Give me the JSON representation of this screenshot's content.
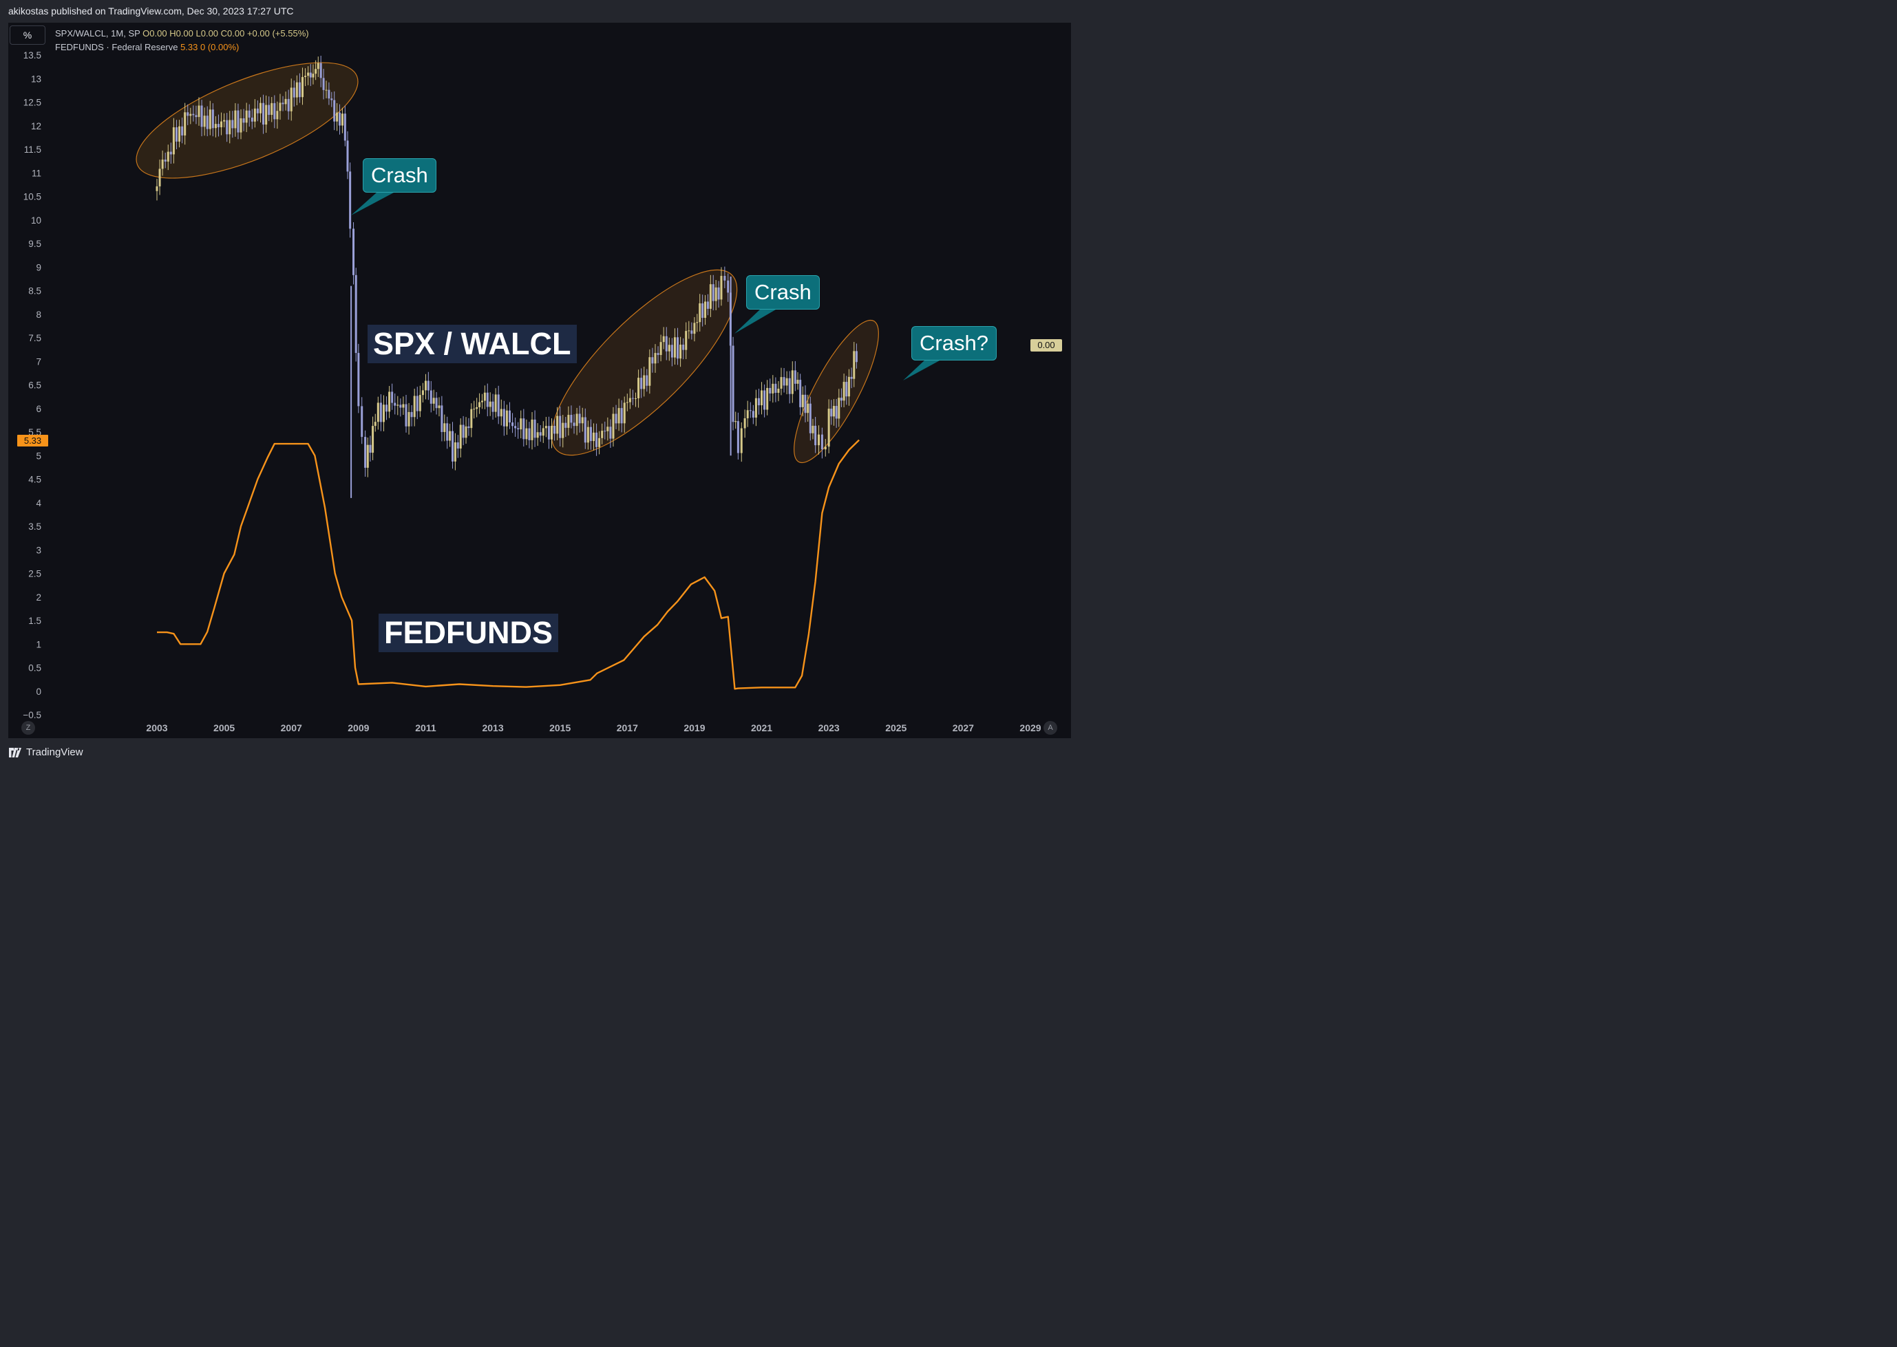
{
  "header": {
    "published": "akikostas published on TradingView.com, Dec 30, 2023 17:27 UTC"
  },
  "toolbar": {
    "scale_button": "%"
  },
  "legend": {
    "symbol": "SPX/WALCL, 1M, SP",
    "ohlc": "O0.00  H0.00  L0.00  C0.00",
    "change": "+0.00 (+5.55%)",
    "series2_name": "FEDFUNDS · Federal Reserve",
    "series2_value": "5.33  0 (0.00%)"
  },
  "badges": {
    "fedfunds_last": "5.33",
    "spx_walcl_last": "0.00"
  },
  "annotations": {
    "spx_label": "SPX / WALCL",
    "fed_label": "FEDFUNDS",
    "crash1": "Crash",
    "crash2": "Crash",
    "crash3": "Crash?"
  },
  "footer": {
    "brand": "TradingView"
  },
  "controls": {
    "zoom_left": "Z",
    "auto_right": "A"
  },
  "colors": {
    "background": "#0f1016",
    "candle_up": "#d6c98a",
    "candle_down": "#9aa0d8",
    "fedfunds": "#f7931a",
    "ellipse": "#e08a1e",
    "callout": "#0c6f7a"
  },
  "chart_data": {
    "type": "line",
    "y_axis": {
      "ticks": [
        "13.5",
        "13",
        "12.5",
        "12",
        "11.5",
        "11",
        "10.5",
        "10",
        "9.5",
        "9",
        "8.5",
        "8",
        "7.5",
        "7",
        "6.5",
        "6",
        "5.5",
        "5",
        "4.5",
        "4",
        "3.5",
        "3",
        "2.5",
        "2",
        "1.5",
        "1",
        "0.5",
        "0",
        "−0.5"
      ],
      "ylim": [
        -0.5,
        13.5
      ]
    },
    "x_axis": {
      "ticks": [
        "2003",
        "2005",
        "2007",
        "2009",
        "2011",
        "2013",
        "2015",
        "2017",
        "2019",
        "2021",
        "2023",
        "2025",
        "2027",
        "2029"
      ],
      "xlim": [
        2003,
        2029
      ]
    },
    "series": [
      {
        "name": "SPX/WALCL",
        "style": "candles",
        "x": [
          2003.0,
          2003.5,
          2004.0,
          2004.5,
          2005.0,
          2005.5,
          2006.0,
          2006.5,
          2007.0,
          2007.5,
          2007.8,
          2008.2,
          2008.6,
          2008.75,
          2008.85,
          2009.0,
          2009.2,
          2009.5,
          2010.0,
          2010.5,
          2011.0,
          2011.4,
          2011.8,
          2012.2,
          2012.6,
          2013.0,
          2013.5,
          2014.0,
          2014.5,
          2015.0,
          2015.5,
          2016.0,
          2016.5,
          2017.0,
          2017.5,
          2018.0,
          2018.5,
          2019.0,
          2019.4,
          2019.8,
          2020.0,
          2020.15,
          2020.3,
          2020.5,
          2021.0,
          2021.5,
          2022.0,
          2022.3,
          2022.6,
          2022.8,
          2023.0,
          2023.3,
          2023.6,
          2023.9
        ],
        "values": [
          10.9,
          11.7,
          12.3,
          12.1,
          12.0,
          12.1,
          12.3,
          12.3,
          12.6,
          13.1,
          13.2,
          12.4,
          11.9,
          10.0,
          8.6,
          6.0,
          4.8,
          5.8,
          6.2,
          5.8,
          6.5,
          5.9,
          5.1,
          5.6,
          6.2,
          6.1,
          5.7,
          5.5,
          5.5,
          5.6,
          5.8,
          5.3,
          5.6,
          6.1,
          6.6,
          7.4,
          7.2,
          7.8,
          8.3,
          8.6,
          8.7,
          5.8,
          5.2,
          5.8,
          6.2,
          6.5,
          6.6,
          6.0,
          5.4,
          5.1,
          5.8,
          6.1,
          6.6,
          7.3
        ]
      },
      {
        "name": "FEDFUNDS",
        "style": "line",
        "x": [
          2003.0,
          2003.3,
          2003.5,
          2003.7,
          2004.0,
          2004.3,
          2004.5,
          2004.7,
          2005.0,
          2005.3,
          2005.5,
          2005.7,
          2006.0,
          2006.3,
          2006.5,
          2007.0,
          2007.5,
          2007.7,
          2008.0,
          2008.3,
          2008.5,
          2008.8,
          2008.9,
          2009.0,
          2010.0,
          2011.0,
          2012.0,
          2013.0,
          2014.0,
          2015.0,
          2015.9,
          2016.1,
          2016.9,
          2017.2,
          2017.5,
          2017.9,
          2018.2,
          2018.5,
          2018.9,
          2019.3,
          2019.6,
          2019.8,
          2020.0,
          2020.2,
          2020.3,
          2021.0,
          2022.0,
          2022.2,
          2022.4,
          2022.6,
          2022.8,
          2023.0,
          2023.3,
          2023.6,
          2023.9
        ],
        "values": [
          1.25,
          1.25,
          1.22,
          1.0,
          1.0,
          1.0,
          1.26,
          1.75,
          2.5,
          2.9,
          3.5,
          3.9,
          4.5,
          4.97,
          5.25,
          5.25,
          5.25,
          5.0,
          3.9,
          2.5,
          2.0,
          1.5,
          0.5,
          0.15,
          0.18,
          0.1,
          0.15,
          0.11,
          0.09,
          0.13,
          0.24,
          0.38,
          0.66,
          0.91,
          1.16,
          1.41,
          1.69,
          1.91,
          2.27,
          2.42,
          2.13,
          1.55,
          1.58,
          0.05,
          0.06,
          0.08,
          0.08,
          0.33,
          1.21,
          2.33,
          3.78,
          4.33,
          4.83,
          5.12,
          5.33
        ]
      }
    ],
    "annotations": [
      "SPX / WALCL",
      "FEDFUNDS",
      "Crash",
      "Crash",
      "Crash?"
    ],
    "grid": false
  }
}
